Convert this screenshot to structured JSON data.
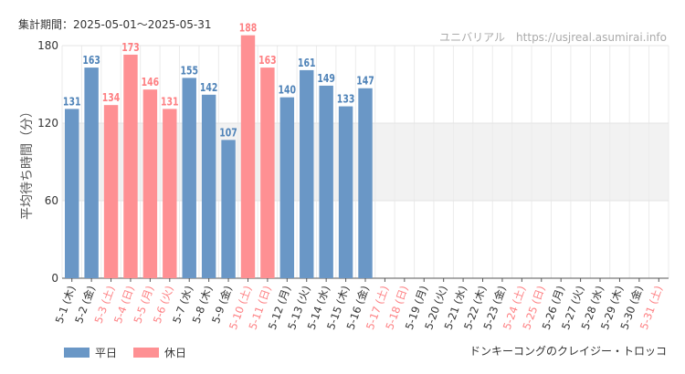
{
  "header": {
    "period_label": "集計期間：2025-05-01～2025-05-31",
    "source": "ユニバリアル　https://usjreal.asumirai.info"
  },
  "footer": {
    "attraction": "ドンキーコングのクレイジー・トロッコ"
  },
  "colors": {
    "weekday": "#6a97c6",
    "holiday": "#fe9093",
    "weekday_text": "#4f83b8",
    "holiday_text": "#fe7f82",
    "band": "#f2f2f2"
  },
  "chart_data": {
    "type": "bar",
    "ylabel": "平均待ち時間（分）",
    "ylim": [
      0,
      180
    ],
    "yticks": [
      0,
      60,
      120,
      180
    ],
    "shaded_range": [
      60,
      120
    ],
    "grid": true,
    "legend_placement": "bottom-left",
    "legend": [
      {
        "key": "weekday",
        "label": "平日"
      },
      {
        "key": "holiday",
        "label": "休日"
      }
    ],
    "categories": [
      "5-1 (木)",
      "5-2 (金)",
      "5-3 (土)",
      "5-4 (日)",
      "5-5 (月)",
      "5-6 (火)",
      "5-7 (水)",
      "5-8 (木)",
      "5-9 (金)",
      "5-10 (土)",
      "5-11 (日)",
      "5-12 (月)",
      "5-13 (火)",
      "5-14 (水)",
      "5-15 (木)",
      "5-16 (金)",
      "5-17 (土)",
      "5-18 (日)",
      "5-19 (月)",
      "5-20 (火)",
      "5-21 (水)",
      "5-22 (木)",
      "5-23 (金)",
      "5-24 (土)",
      "5-25 (日)",
      "5-26 (月)",
      "5-27 (火)",
      "5-28 (水)",
      "5-29 (木)",
      "5-30 (金)",
      "5-31 (土)"
    ],
    "values": [
      131,
      163,
      134,
      173,
      146,
      131,
      155,
      142,
      107,
      188,
      163,
      140,
      161,
      149,
      133,
      147,
      null,
      null,
      null,
      null,
      null,
      null,
      null,
      null,
      null,
      null,
      null,
      null,
      null,
      null,
      null
    ],
    "day_type": [
      "weekday",
      "weekday",
      "holiday",
      "holiday",
      "holiday",
      "holiday",
      "weekday",
      "weekday",
      "weekday",
      "holiday",
      "holiday",
      "weekday",
      "weekday",
      "weekday",
      "weekday",
      "weekday",
      "holiday",
      "holiday",
      "weekday",
      "weekday",
      "weekday",
      "weekday",
      "weekday",
      "holiday",
      "holiday",
      "weekday",
      "weekday",
      "weekday",
      "weekday",
      "weekday",
      "holiday"
    ]
  }
}
